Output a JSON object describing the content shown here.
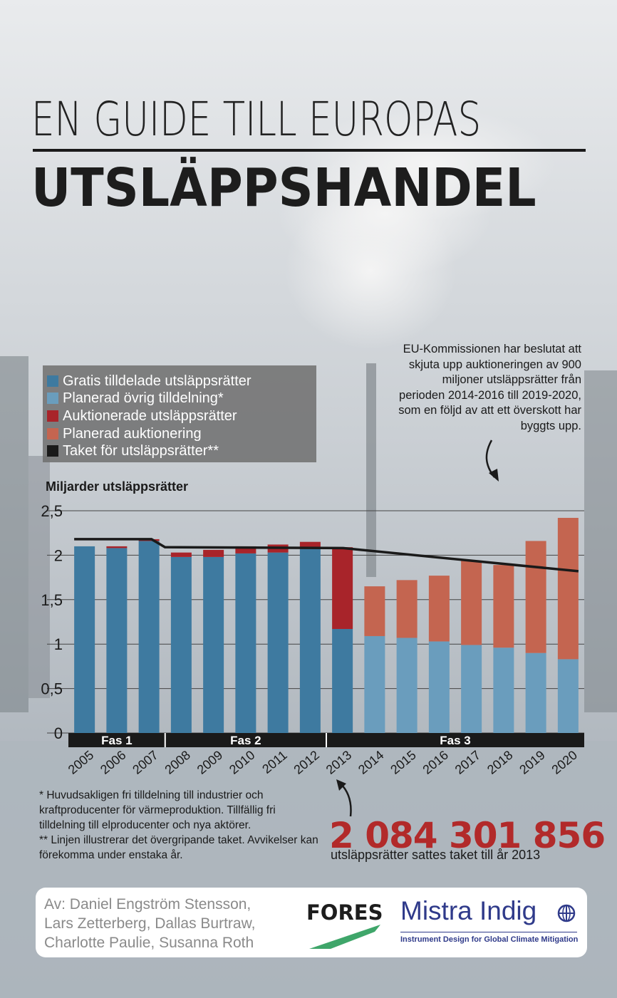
{
  "title": {
    "line1": "EN GUIDE TILL EUROPAS",
    "line2": "UTSLÄPPSHANDEL"
  },
  "legend": [
    {
      "label": "Gratis tilldelade utsläppsrätter",
      "color": "#3e7aa0"
    },
    {
      "label": "Planerad övrig tilldelning*",
      "color": "#6a9dbd"
    },
    {
      "label": "Auktionerade utsläppsrätter",
      "color": "#a8242a"
    },
    {
      "label": "Planerad auktionering",
      "color": "#c46550"
    },
    {
      "label": "Taket för utsläppsrätter**",
      "color": "#1a1a1a"
    }
  ],
  "annotation_top": "EU-Kommissionen har beslutat att skjuta upp auktioneringen av 900 miljoner utsläppsrätter från perioden 2014-2016 till 2019-2020, som en följd av att ett överskott har byggts upp.",
  "chart_data": {
    "type": "bar",
    "stacked": true,
    "ylabel": "Miljarder utsläppsrätter",
    "ylim": [
      0,
      2.5
    ],
    "yticks": [
      0,
      0.5,
      1,
      1.5,
      2,
      2.5
    ],
    "ytick_labels": [
      "0",
      "0,5",
      "1",
      "1,5",
      "2",
      "2,5"
    ],
    "grid": true,
    "categories": [
      "2005",
      "2006",
      "2007",
      "2008",
      "2009",
      "2010",
      "2011",
      "2012",
      "2013",
      "2014",
      "2015",
      "2016",
      "2017",
      "2018",
      "2019",
      "2020"
    ],
    "series": [
      {
        "name": "Gratis tilldelade utsläppsrätter",
        "color": "#3e7aa0",
        "values": [
          2.1,
          2.08,
          2.16,
          1.98,
          1.98,
          2.02,
          2.03,
          2.07,
          1.17,
          0,
          0,
          0,
          0,
          0,
          0,
          0
        ]
      },
      {
        "name": "Planerad övrig tilldelning*",
        "color": "#6a9dbd",
        "values": [
          0,
          0,
          0,
          0,
          0,
          0,
          0,
          0,
          0,
          1.09,
          1.07,
          1.03,
          0.99,
          0.96,
          0.9,
          0.83
        ]
      },
      {
        "name": "Auktionerade utsläppsrätter",
        "color": "#a8242a",
        "values": [
          0,
          0.02,
          0.02,
          0.05,
          0.08,
          0.08,
          0.09,
          0.08,
          0.92,
          0,
          0,
          0,
          0,
          0,
          0,
          0
        ]
      },
      {
        "name": "Planerad auktionering",
        "color": "#c46550",
        "values": [
          0,
          0,
          0,
          0,
          0,
          0,
          0,
          0,
          0,
          0.56,
          0.65,
          0.74,
          0.95,
          0.93,
          1.26,
          1.59
        ]
      }
    ],
    "line": {
      "name": "Taket för utsläppsrätter**",
      "color": "#1a1a1a",
      "points": [
        [
          2005,
          2.18
        ],
        [
          2007.3,
          2.18
        ],
        [
          2007.7,
          2.09
        ],
        [
          2013,
          2.08
        ],
        [
          2020,
          1.82
        ]
      ]
    },
    "phases": [
      {
        "label": "Fas 1",
        "from": "2005",
        "to": "2007"
      },
      {
        "label": "Fas 2",
        "from": "2008",
        "to": "2012"
      },
      {
        "label": "Fas 3",
        "from": "2013",
        "to": "2020"
      }
    ]
  },
  "footnote": "* Huvudsakligen fri tilldelning till industrier och kraftproducenter för värmeproduktion. Tillfällig fri tilldelning till elproducenter och nya aktörer.\n** Linjen illustrerar det övergripande taket. Avvikelser kan förekomma under enstaka år.",
  "highlight": {
    "number": "2 084 301 856",
    "caption": "utsläppsrätter sattes taket till år 2013"
  },
  "credits": {
    "authors": "Av: Daniel Engström Stensson,\nLars Zetterberg, Dallas Burtraw,\nCharlotte Paulie, Susanna Roth",
    "logo1": "FORES",
    "logo2": "Mistra Indig",
    "logo2_sub": "Instrument Design for Global Climate Mitigation"
  },
  "colors": {
    "accent_red": "#b22a2a",
    "legend_bg": "#6e6e6e",
    "mistra_blue": "#2f3a8a"
  }
}
